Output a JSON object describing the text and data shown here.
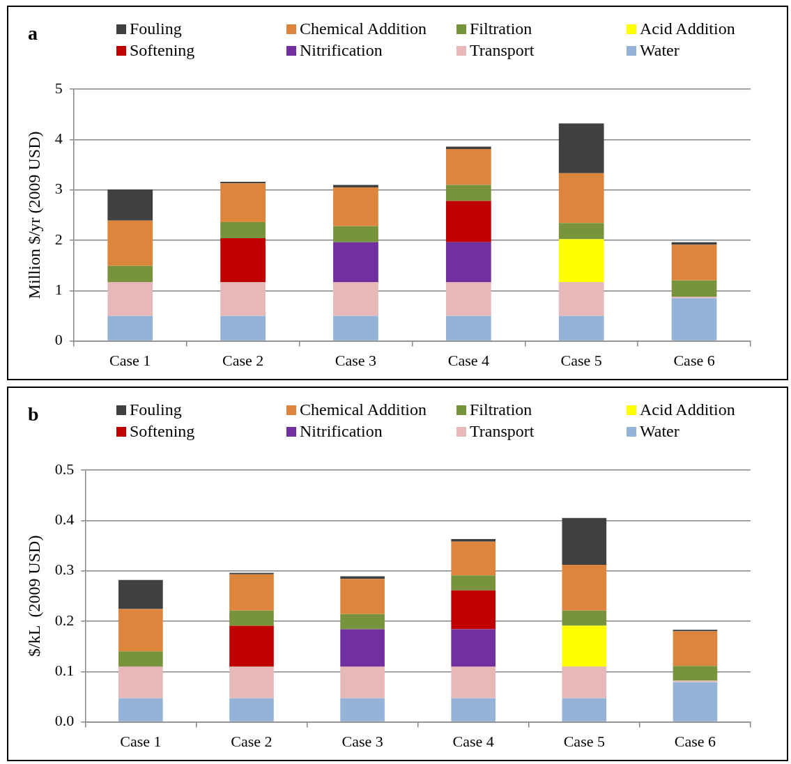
{
  "chart_data": [
    {
      "type": "bar",
      "title": "a",
      "ylabel": "Million $/yr (2009 USD)",
      "categories": [
        "Case 1",
        "Case 2",
        "Case 3",
        "Case 4",
        "Case 5",
        "Case 6"
      ],
      "stacked": true,
      "ylim": [
        0,
        5
      ],
      "yticks": [
        0,
        1,
        2,
        3,
        4,
        5
      ],
      "grid": "y",
      "legend": "top",
      "series": [
        {
          "name": "Water",
          "color": "#95b3d7",
          "values": [
            0.5,
            0.5,
            0.5,
            0.5,
            0.5,
            0.85
          ]
        },
        {
          "name": "Transport",
          "color": "#e6b9b8",
          "values": [
            0.67,
            0.67,
            0.67,
            0.67,
            0.67,
            0.03
          ]
        },
        {
          "name": "Nitrification",
          "color": "#7030a0",
          "values": [
            null,
            null,
            0.79,
            0.79,
            null,
            null
          ]
        },
        {
          "name": "Softening",
          "color": "#c00000",
          "values": [
            null,
            0.87,
            null,
            0.82,
            null,
            null
          ]
        },
        {
          "name": "Acid Addition",
          "color": "#ffff00",
          "values": [
            null,
            null,
            null,
            null,
            0.85,
            null
          ]
        },
        {
          "name": "Filtration",
          "color": "#77933c",
          "values": [
            0.32,
            0.32,
            0.32,
            0.32,
            0.32,
            0.32
          ]
        },
        {
          "name": "Chemical Addition",
          "color": "#dd843d",
          "values": [
            0.9,
            0.77,
            0.77,
            0.71,
            0.99,
            0.71
          ]
        },
        {
          "name": "Fouling",
          "color": "#404040",
          "values": [
            0.62,
            0.03,
            0.05,
            0.05,
            0.99,
            0.05
          ]
        }
      ]
    },
    {
      "type": "bar",
      "title": "b",
      "ylabel": "$/kL  (2009 USD)",
      "categories": [
        "Case 1",
        "Case 2",
        "Case 3",
        "Case 4",
        "Case 5",
        "Case 6"
      ],
      "stacked": true,
      "ylim": [
        0,
        0.5
      ],
      "yticks": [
        {
          "value": 0,
          "label": "0.0"
        },
        {
          "value": 0.1,
          "label": "0.1"
        },
        {
          "value": 0.2,
          "label": "0.2"
        },
        {
          "value": 0.3,
          "label": "0.3"
        },
        {
          "value": 0.4,
          "label": "0.4"
        },
        {
          "value": 0.5,
          "label": "0.5"
        }
      ],
      "grid": "y",
      "legend": "top",
      "series": [
        {
          "name": "Water",
          "color": "#95b3d7",
          "values": [
            0.047,
            0.047,
            0.047,
            0.047,
            0.047,
            0.079
          ]
        },
        {
          "name": "Transport",
          "color": "#e6b9b8",
          "values": [
            0.063,
            0.063,
            0.063,
            0.063,
            0.063,
            0.003
          ]
        },
        {
          "name": "Nitrification",
          "color": "#7030a0",
          "values": [
            null,
            null,
            0.074,
            0.074,
            null,
            null
          ]
        },
        {
          "name": "Softening",
          "color": "#c00000",
          "values": [
            null,
            0.081,
            null,
            0.077,
            null,
            null
          ]
        },
        {
          "name": "Acid Addition",
          "color": "#ffff00",
          "values": [
            null,
            null,
            null,
            null,
            0.081,
            null
          ]
        },
        {
          "name": "Filtration",
          "color": "#77933c",
          "values": [
            0.03,
            0.03,
            0.03,
            0.03,
            0.03,
            0.029
          ]
        },
        {
          "name": "Chemical Addition",
          "color": "#dd843d",
          "values": [
            0.084,
            0.072,
            0.07,
            0.067,
            0.091,
            0.069
          ]
        },
        {
          "name": "Fouling",
          "color": "#404040",
          "values": [
            0.058,
            0.003,
            0.005,
            0.005,
            0.093,
            0.003
          ]
        }
      ]
    }
  ]
}
